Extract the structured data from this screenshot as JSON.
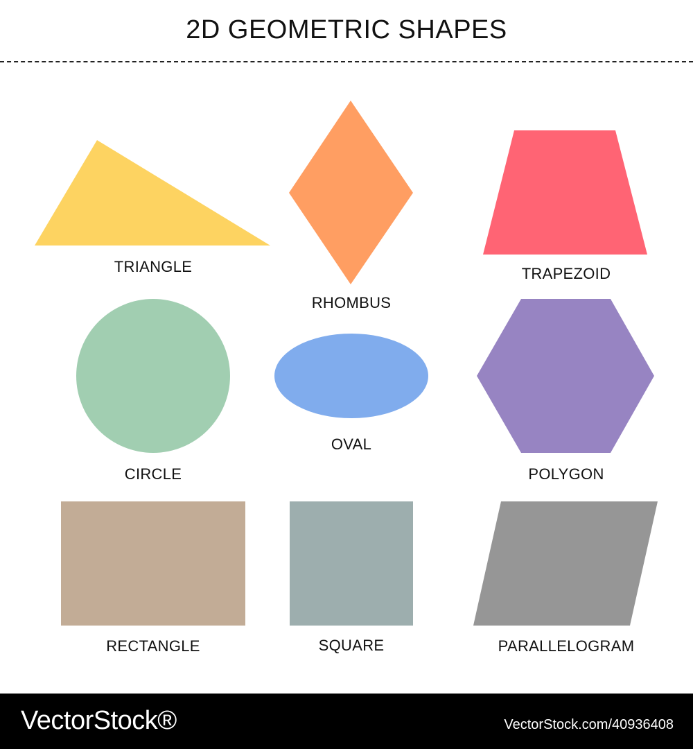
{
  "title": "2D GEOMETRIC SHAPES",
  "shapes": {
    "triangle": {
      "label": "TRIANGLE",
      "color": "#FDD361"
    },
    "rhombus": {
      "label": "RHOMBUS",
      "color": "#FF9E62"
    },
    "trapezoid": {
      "label": "TRAPEZOID",
      "color": "#FF6474"
    },
    "circle": {
      "label": "CIRCLE",
      "color": "#A1CEB1"
    },
    "oval": {
      "label": "OVAL",
      "color": "#80ACED"
    },
    "polygon": {
      "label": "POLYGON",
      "color": "#9784C2"
    },
    "rectangle": {
      "label": "RECTANGLE",
      "color": "#C2AC96"
    },
    "square": {
      "label": "SQUARE",
      "color": "#9DAEAE"
    },
    "parallelogram": {
      "label": "PARALLELOGRAM",
      "color": "#969696"
    }
  },
  "footer": {
    "logo": "VectorStock®",
    "image_id": "VectorStock.com/40936408"
  }
}
